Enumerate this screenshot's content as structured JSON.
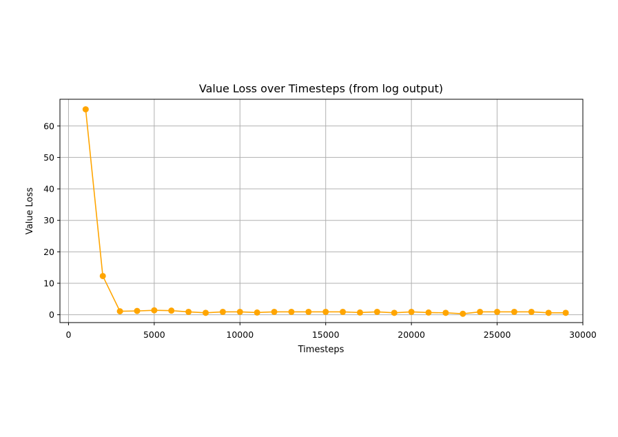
{
  "chart_data": {
    "type": "line",
    "title": "Value Loss over Timesteps (from log output)",
    "xlabel": "Timesteps",
    "ylabel": "Value Loss",
    "xlim": [
      -500,
      30000
    ],
    "ylim": [
      -2.5,
      68.5
    ],
    "xticks": [
      0,
      5000,
      10000,
      15000,
      20000,
      25000,
      30000
    ],
    "yticks": [
      0,
      10,
      20,
      30,
      40,
      50,
      60
    ],
    "grid": true,
    "color": "#FFA500",
    "marker": "circle",
    "series": [
      {
        "x": [
          1000,
          2000,
          3000,
          4000,
          5000,
          6000,
          7000,
          8000,
          9000,
          10000,
          11000,
          12000,
          13000,
          14000,
          15000,
          16000,
          17000,
          18000,
          19000,
          20000,
          21000,
          22000,
          23000,
          24000,
          25000,
          26000,
          27000,
          28000,
          29000
        ],
        "y": [
          65.3,
          12.3,
          1.1,
          1.2,
          1.4,
          1.3,
          0.9,
          0.6,
          0.9,
          0.9,
          0.7,
          0.9,
          0.9,
          0.9,
          0.9,
          0.9,
          0.7,
          0.9,
          0.6,
          0.9,
          0.7,
          0.6,
          0.3,
          0.9,
          0.9,
          0.9,
          0.9,
          0.6,
          0.6
        ]
      }
    ]
  }
}
